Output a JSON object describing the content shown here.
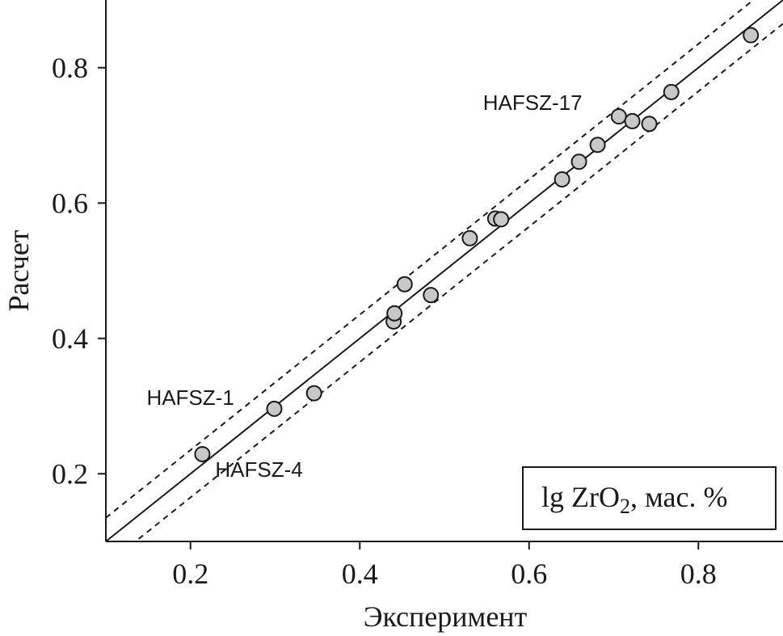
{
  "chart_data": {
    "type": "scatter",
    "xlabel": "Эксперимент",
    "ylabel": "Расчет",
    "xlim": [
      0.1,
      0.9
    ],
    "ylim": [
      0.1,
      0.9
    ],
    "xticks": [
      "0.2",
      "0.4",
      "0.6",
      "0.8"
    ],
    "yticks": [
      "0.2",
      "0.4",
      "0.6",
      "0.8"
    ],
    "grid": false,
    "points": [
      {
        "x": 0.214,
        "y": 0.229
      },
      {
        "x": 0.299,
        "y": 0.296
      },
      {
        "x": 0.346,
        "y": 0.319
      },
      {
        "x": 0.44,
        "y": 0.425
      },
      {
        "x": 0.441,
        "y": 0.437
      },
      {
        "x": 0.453,
        "y": 0.48
      },
      {
        "x": 0.484,
        "y": 0.464
      },
      {
        "x": 0.53,
        "y": 0.548
      },
      {
        "x": 0.56,
        "y": 0.577
      },
      {
        "x": 0.567,
        "y": 0.576
      },
      {
        "x": 0.639,
        "y": 0.635
      },
      {
        "x": 0.659,
        "y": 0.661
      },
      {
        "x": 0.681,
        "y": 0.686
      },
      {
        "x": 0.706,
        "y": 0.728
      },
      {
        "x": 0.722,
        "y": 0.721
      },
      {
        "x": 0.742,
        "y": 0.717
      },
      {
        "x": 0.768,
        "y": 0.764
      },
      {
        "x": 0.862,
        "y": 0.848
      }
    ],
    "lines": [
      {
        "style": "solid",
        "slope": 1,
        "intercept": 0
      },
      {
        "style": "dashed",
        "slope": 1,
        "intercept": 0.035
      },
      {
        "style": "dashed",
        "slope": 1,
        "intercept": -0.035
      }
    ],
    "annotations": [
      {
        "text": "HAFSZ-17",
        "x": 0.706,
        "y": 0.728
      },
      {
        "text": "HAFSZ-1",
        "x": 0.299,
        "y": 0.296
      },
      {
        "text": "HAFSZ-4",
        "x": 0.214,
        "y": 0.229
      }
    ],
    "legend": {
      "position": "bottom-right",
      "text_prefix": "lg ZrO",
      "text_sub": "2",
      "text_suffix": ", мас. %"
    }
  }
}
